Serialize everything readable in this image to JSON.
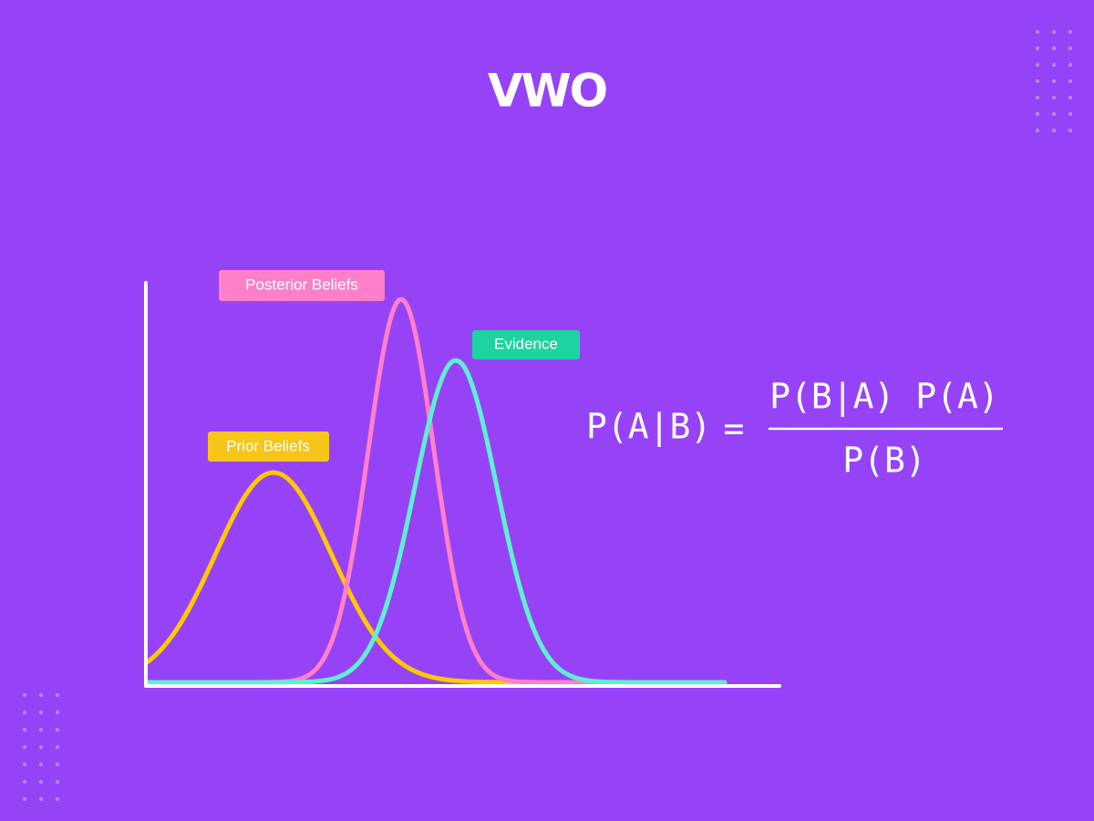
{
  "logo": "VWO",
  "labels": {
    "posterior": "Posterior Beliefs",
    "evidence": "Evidence",
    "prior": "Prior Beliefs"
  },
  "formula": {
    "lhs": "P(A|B)",
    "equals": "=",
    "numerator": "P(B|A) P(A)",
    "denominator": "P(B)"
  }
}
